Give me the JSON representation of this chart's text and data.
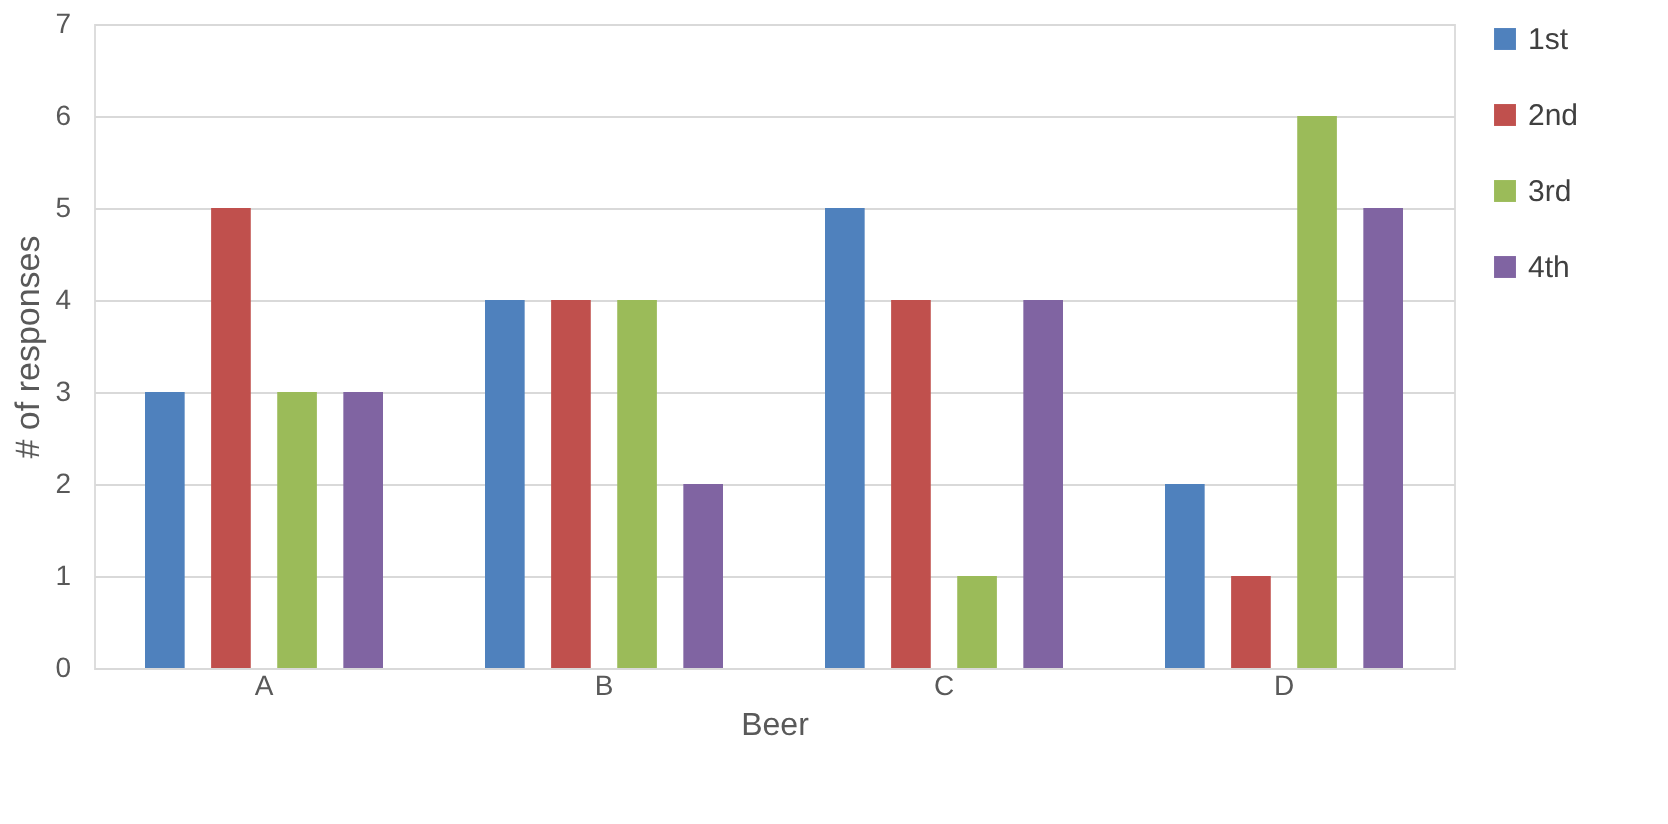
{
  "chart_data": {
    "type": "bar",
    "xlabel": "Beer",
    "ylabel": "# of responses",
    "categories": [
      "A",
      "B",
      "C",
      "D"
    ],
    "series": [
      {
        "name": "1st",
        "color": "#4f81bd",
        "values": [
          3,
          4,
          5,
          2
        ]
      },
      {
        "name": "2nd",
        "color": "#c0504d",
        "values": [
          5,
          4,
          4,
          1
        ]
      },
      {
        "name": "3rd",
        "color": "#9bbb59",
        "values": [
          3,
          4,
          1,
          6
        ]
      },
      {
        "name": "4th",
        "color": "#8064a2",
        "values": [
          3,
          2,
          4,
          5
        ]
      }
    ],
    "ylim": [
      0,
      7
    ],
    "yticks": [
      0,
      1,
      2,
      3,
      4,
      5,
      6,
      7
    ],
    "grid": "y",
    "legend": "right"
  }
}
